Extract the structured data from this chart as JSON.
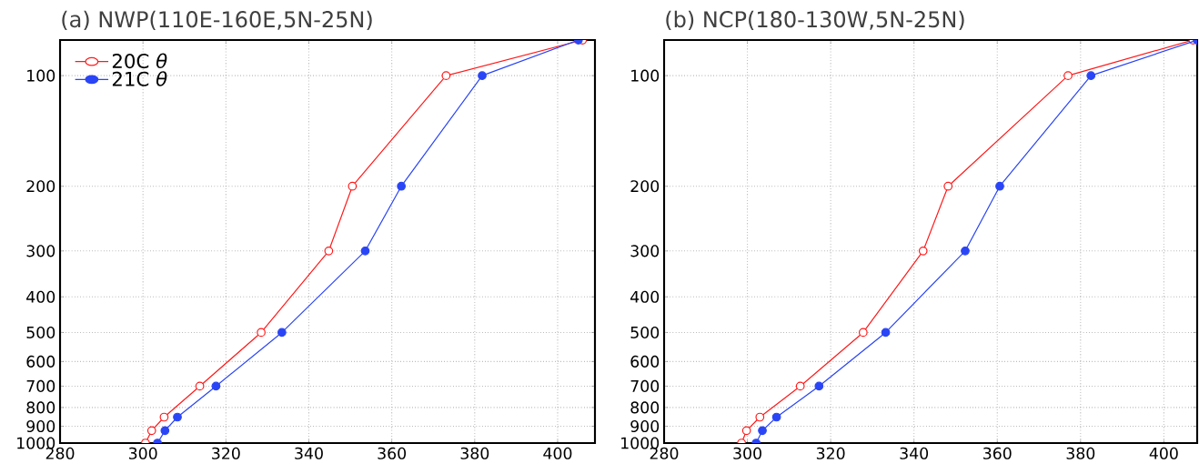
{
  "chart_data": [
    {
      "type": "line",
      "title": "(a) NWP(110E-160E,5N-25N)",
      "xlim": [
        280,
        409
      ],
      "xticks": [
        280,
        300,
        320,
        340,
        360,
        380,
        400
      ],
      "ylim": [
        1000,
        80
      ],
      "yticks": [
        100,
        200,
        300,
        400,
        500,
        600,
        700,
        800,
        900,
        1000
      ],
      "log": "y",
      "grid": true,
      "legend": "top left",
      "marker": "circle",
      "line_style": "solid",
      "series": [
        {
          "name": "20C *θ*",
          "color": "#ff1a1a",
          "x": [
            300.6,
            302.1,
            305.1,
            313.7,
            328.5,
            344.8,
            350.5,
            373.1,
            406
          ],
          "values": [
            1000,
            925,
            850,
            700,
            500,
            300,
            200,
            100,
            80
          ]
        },
        {
          "name": "21C *θ*",
          "color": "#2a45f5",
          "x": [
            303.5,
            305.3,
            308.3,
            317.6,
            333.5,
            353.6,
            362.3,
            381.8,
            405
          ],
          "values": [
            1000,
            925,
            850,
            700,
            500,
            300,
            200,
            100,
            80
          ]
        }
      ]
    },
    {
      "type": "line",
      "title": "(b) NCP(180-130W,5N-25N)",
      "xlim": [
        280,
        408
      ],
      "xticks": [
        280,
        300,
        320,
        340,
        360,
        380,
        400
      ],
      "ylim": [
        1000,
        80
      ],
      "yticks": [
        100,
        200,
        300,
        400,
        500,
        600,
        700,
        800,
        900,
        1000
      ],
      "log": "y",
      "grid": true,
      "marker": "circle",
      "line_style": "solid",
      "series": [
        {
          "color": "#ff1a1a",
          "x": [
            298.6,
            299.8,
            303.0,
            312.7,
            327.8,
            342.2,
            348.2,
            377.0,
            407
          ],
          "values": [
            1000,
            925,
            850,
            700,
            500,
            300,
            200,
            100,
            80
          ]
        },
        {
          "color": "#2a45f5",
          "x": [
            302.1,
            303.6,
            307.0,
            317.2,
            333.2,
            352.3,
            360.6,
            382.5,
            408
          ],
          "values": [
            1000,
            925,
            850,
            700,
            500,
            300,
            200,
            100,
            80
          ]
        }
      ]
    }
  ]
}
